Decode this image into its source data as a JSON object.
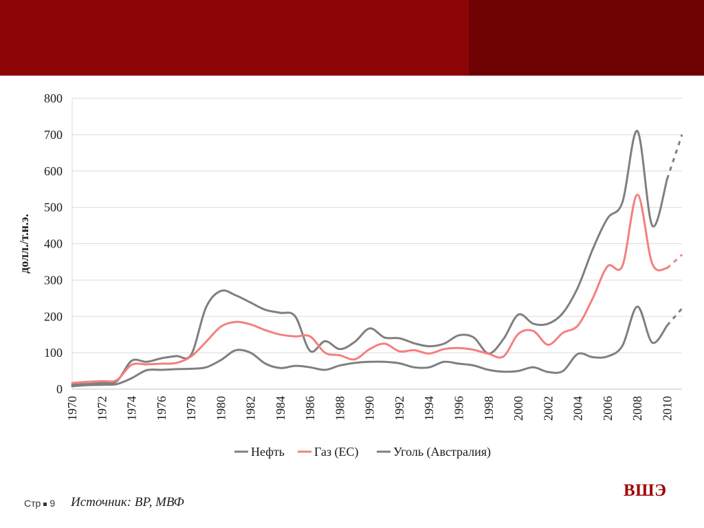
{
  "header": {
    "colors": {
      "band": "#8c0404",
      "band_dark": "#6e0202"
    }
  },
  "footer": {
    "page_label": "Стр",
    "page_number": "9",
    "source": "Источник: BP, МВФ",
    "logo": "ВШЭ"
  },
  "chart_data": {
    "type": "line",
    "title": "",
    "xlabel": "",
    "ylabel": "долл./т.н.э.",
    "ylim": [
      0,
      800
    ],
    "xlim": [
      1970,
      2011
    ],
    "yticks": [
      "0",
      "100",
      "200",
      "300",
      "400",
      "500",
      "600",
      "700",
      "800"
    ],
    "xticks": [
      "1970",
      "1972",
      "1974",
      "1976",
      "1978",
      "1980",
      "1982",
      "1984",
      "1986",
      "1988",
      "1990",
      "1992",
      "1994",
      "1996",
      "1998",
      "2000",
      "2002",
      "2004",
      "2006",
      "2008",
      "2010"
    ],
    "grid": true,
    "legend_position": "bottom",
    "series": [
      {
        "name": "Нефть",
        "color": "#7f7f7f",
        "x": [
          1970,
          1971,
          1972,
          1973,
          1974,
          1975,
          1976,
          1977,
          1978,
          1979,
          1980,
          1981,
          1982,
          1983,
          1984,
          1985,
          1986,
          1987,
          1988,
          1989,
          1990,
          1991,
          1992,
          1993,
          1994,
          1995,
          1996,
          1997,
          1998,
          1999,
          2000,
          2001,
          2002,
          2003,
          2004,
          2005,
          2006,
          2007,
          2008,
          2009,
          2010
        ],
        "y": [
          12,
          14,
          17,
          22,
          78,
          75,
          85,
          91,
          95,
          225,
          270,
          258,
          238,
          218,
          210,
          200,
          105,
          132,
          110,
          130,
          167,
          142,
          140,
          126,
          118,
          125,
          148,
          142,
          98,
          138,
          205,
          180,
          180,
          210,
          280,
          385,
          470,
          515,
          710,
          450,
          578
        ],
        "projection": {
          "x": [
            2010,
            2011
          ],
          "y": [
            578,
            700
          ]
        }
      },
      {
        "name": "Газ (ЕС)",
        "color": "#f47f7f",
        "x": [
          1970,
          1971,
          1972,
          1973,
          1974,
          1975,
          1976,
          1977,
          1978,
          1979,
          1980,
          1981,
          1982,
          1983,
          1984,
          1985,
          1986,
          1987,
          1988,
          1989,
          1990,
          1991,
          1992,
          1993,
          1994,
          1995,
          1996,
          1997,
          1998,
          1999,
          2000,
          2001,
          2002,
          2003,
          2004,
          2005,
          2006,
          2007,
          2008,
          2009,
          2010
        ],
        "y": [
          17,
          20,
          22,
          25,
          67,
          68,
          70,
          72,
          90,
          130,
          172,
          185,
          178,
          162,
          150,
          145,
          145,
          100,
          93,
          82,
          110,
          125,
          104,
          107,
          98,
          110,
          113,
          108,
          97,
          90,
          152,
          160,
          122,
          155,
          175,
          250,
          338,
          340,
          535,
          345,
          333
        ],
        "projection": {
          "x": [
            2010,
            2011
          ],
          "y": [
            333,
            370
          ]
        }
      },
      {
        "name": "Уголь (Австралия)",
        "color": "#7f7f7f",
        "x": [
          1970,
          1971,
          1972,
          1973,
          1974,
          1975,
          1976,
          1977,
          1978,
          1979,
          1980,
          1981,
          1982,
          1983,
          1984,
          1985,
          1986,
          1987,
          1988,
          1989,
          1990,
          1991,
          1992,
          1993,
          1994,
          1995,
          1996,
          1997,
          1998,
          1999,
          2000,
          2001,
          2002,
          2003,
          2004,
          2005,
          2006,
          2007,
          2008,
          2009,
          2010
        ],
        "y": [
          8,
          11,
          12,
          14,
          30,
          52,
          53,
          55,
          56,
          60,
          80,
          107,
          100,
          70,
          58,
          64,
          60,
          53,
          65,
          72,
          75,
          75,
          71,
          60,
          60,
          75,
          70,
          65,
          53,
          48,
          50,
          60,
          47,
          50,
          97,
          88,
          90,
          120,
          227,
          128,
          175
        ],
        "projection": {
          "x": [
            2010,
            2011
          ],
          "y": [
            175,
            222
          ]
        }
      }
    ]
  }
}
